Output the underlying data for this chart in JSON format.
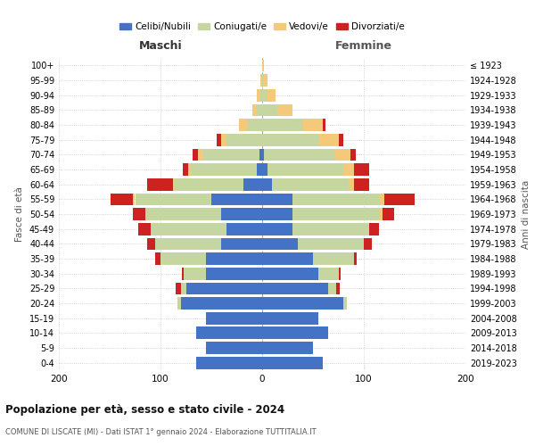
{
  "age_groups": [
    "0-4",
    "5-9",
    "10-14",
    "15-19",
    "20-24",
    "25-29",
    "30-34",
    "35-39",
    "40-44",
    "45-49",
    "50-54",
    "55-59",
    "60-64",
    "65-69",
    "70-74",
    "75-79",
    "80-84",
    "85-89",
    "90-94",
    "95-99",
    "100+"
  ],
  "birth_years": [
    "2019-2023",
    "2014-2018",
    "2009-2013",
    "2004-2008",
    "1999-2003",
    "1994-1998",
    "1989-1993",
    "1984-1988",
    "1979-1983",
    "1974-1978",
    "1969-1973",
    "1964-1968",
    "1959-1963",
    "1954-1958",
    "1949-1953",
    "1944-1948",
    "1939-1943",
    "1934-1938",
    "1929-1933",
    "1924-1928",
    "≤ 1923"
  ],
  "colors": {
    "celibi": "#4472c4",
    "coniugati": "#c5d6a0",
    "vedovi": "#f5c97a",
    "divorziati": "#cc2222"
  },
  "males": {
    "celibi": [
      65,
      55,
      65,
      55,
      80,
      75,
      55,
      55,
      40,
      35,
      40,
      50,
      18,
      5,
      3,
      0,
      0,
      0,
      0,
      0,
      0
    ],
    "coniugati": [
      0,
      0,
      0,
      0,
      3,
      5,
      22,
      45,
      65,
      75,
      75,
      75,
      68,
      65,
      55,
      35,
      15,
      5,
      2,
      0,
      0
    ],
    "vedovi": [
      0,
      0,
      0,
      0,
      0,
      0,
      0,
      0,
      0,
      0,
      0,
      2,
      2,
      3,
      5,
      5,
      8,
      5,
      3,
      2,
      0
    ],
    "divorziati": [
      0,
      0,
      0,
      0,
      0,
      5,
      2,
      5,
      8,
      12,
      12,
      22,
      25,
      5,
      5,
      5,
      0,
      0,
      0,
      0,
      0
    ]
  },
  "females": {
    "celibi": [
      60,
      50,
      65,
      55,
      80,
      65,
      55,
      50,
      35,
      30,
      30,
      30,
      10,
      5,
      2,
      0,
      0,
      0,
      0,
      0,
      0
    ],
    "coniugati": [
      0,
      0,
      0,
      0,
      3,
      8,
      20,
      40,
      65,
      75,
      85,
      85,
      75,
      75,
      70,
      55,
      40,
      15,
      5,
      2,
      0
    ],
    "vedovi": [
      0,
      0,
      0,
      0,
      0,
      0,
      0,
      0,
      0,
      0,
      3,
      5,
      5,
      10,
      15,
      20,
      20,
      15,
      8,
      3,
      2
    ],
    "divorziati": [
      0,
      0,
      0,
      0,
      0,
      3,
      2,
      3,
      8,
      10,
      12,
      30,
      15,
      15,
      5,
      5,
      2,
      0,
      0,
      0,
      0
    ]
  },
  "xlim": 200,
  "title": "Popolazione per età, sesso e stato civile - 2024",
  "subtitle": "COMUNE DI LISCATE (MI) - Dati ISTAT 1° gennaio 2024 - Elaborazione TUTTITALIA.IT",
  "ylabel_left": "Fasce di età",
  "ylabel_right": "Anni di nascita",
  "xlabel_left": "Maschi",
  "xlabel_right": "Femmine",
  "legend_labels": [
    "Celibi/Nubili",
    "Coniugati/e",
    "Vedovi/e",
    "Divorziati/e"
  ],
  "background_color": "#ffffff",
  "grid_color": "#bbbbbb"
}
